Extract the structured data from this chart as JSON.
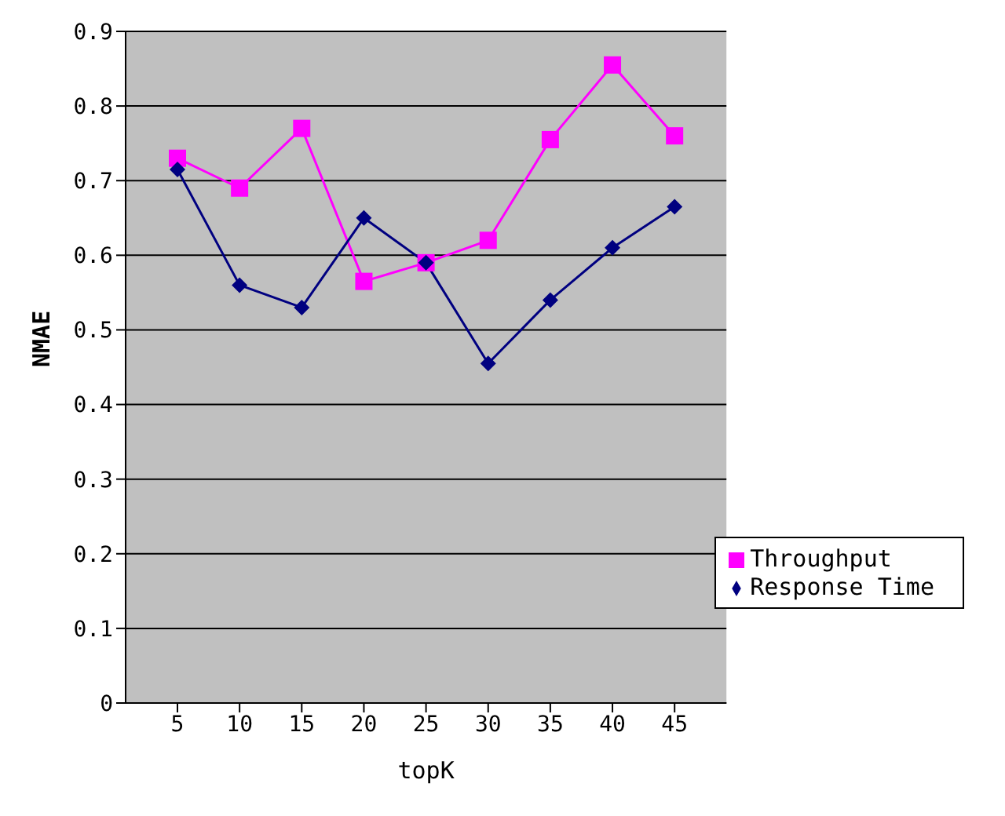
{
  "chart_data": {
    "type": "line",
    "xlabel": "topK",
    "ylabel": "NMAE",
    "categories": [
      "5",
      "10",
      "15",
      "20",
      "25",
      "30",
      "35",
      "40",
      "45"
    ],
    "series": [
      {
        "name": "Throughput",
        "color": "#ff00ff",
        "marker": "square",
        "values": [
          0.73,
          0.69,
          0.77,
          0.565,
          0.59,
          0.62,
          0.755,
          0.855,
          0.76
        ]
      },
      {
        "name": "Response Time",
        "color": "#000080",
        "marker": "diamond",
        "values": [
          0.715,
          0.56,
          0.53,
          0.65,
          0.59,
          0.455,
          0.54,
          0.61,
          0.665
        ]
      }
    ],
    "ylim": [
      0,
      0.9
    ],
    "yticks": [
      0,
      0.1,
      0.2,
      0.3,
      0.4,
      0.5,
      0.6,
      0.7,
      0.8,
      0.9
    ],
    "grid": "y",
    "legend": "bottom right"
  }
}
